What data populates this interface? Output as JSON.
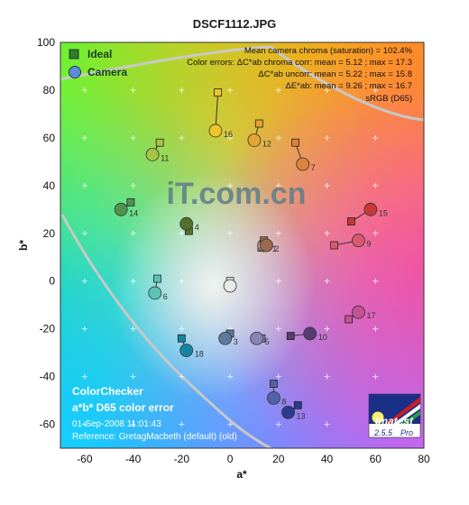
{
  "colors": {
    "background": "#ffffff",
    "plot_border": "#333333",
    "title": "#1a1a1a",
    "info_text": "#ffffff",
    "gamut_line": "#c8c8c8",
    "legend_ideal": "#2e7d32",
    "legend_camera": "#5b8dd9"
  },
  "chart_data": {
    "type": "scatter",
    "title": "DSCF1112.JPG",
    "xlabel": "a*",
    "ylabel": "b*",
    "xlim": [
      -70,
      80
    ],
    "ylim": [
      -70,
      100
    ],
    "xticks": [
      -60,
      -40,
      -20,
      0,
      20,
      40,
      60,
      80
    ],
    "yticks": [
      -60,
      -40,
      -20,
      0,
      20,
      40,
      60,
      80,
      100
    ],
    "grid": true,
    "background": "a*b* color field",
    "legend": {
      "position": "top-left",
      "entries": [
        {
          "name": "Ideal",
          "marker": "square"
        },
        {
          "name": "Camera",
          "marker": "circle"
        }
      ]
    },
    "stats": [
      "Mean camera chroma (saturation) = 102.4%",
      "Color errors:  ΔC*ab chroma corr:  mean = 5.12 ;  max = 17.3",
      "ΔC*ab uncorr:  mean = 5.22 ;  max = 15.8",
      "ΔE*ab:  mean = 9.26 ;  max = 16.7",
      "sRGB (D65)"
    ],
    "info": {
      "line1": "ColorChecker",
      "line2": "a*b* D65 color error",
      "date": "01-Sep-2008 11:01:43",
      "reference": "Reference: GretagMacbeth (default) (old)"
    },
    "watermark": "iT.com.cn",
    "logo": {
      "text": "Imatest",
      "version": "2.5.5",
      "edition": "Pro"
    },
    "patches": [
      {
        "id": "1",
        "ideal": [
          13,
          14
        ],
        "camera": [
          14,
          15
        ],
        "color": "#c1998a"
      },
      {
        "id": "2",
        "ideal": [
          14,
          17
        ],
        "camera": [
          15,
          15
        ],
        "color": "#9e6a52"
      },
      {
        "id": "3",
        "ideal": [
          0,
          -22
        ],
        "camera": [
          -2,
          -24
        ],
        "color": "#5f7aa0"
      },
      {
        "id": "4",
        "ideal": [
          -17,
          21
        ],
        "camera": [
          -18,
          24
        ],
        "color": "#55702e"
      },
      {
        "id": "5",
        "ideal": [
          13,
          -24
        ],
        "camera": [
          11,
          -24
        ],
        "color": "#8a84b6"
      },
      {
        "id": "6",
        "ideal": [
          -30,
          1
        ],
        "camera": [
          -31,
          -5
        ],
        "color": "#5bc3b4"
      },
      {
        "id": "7",
        "ideal": [
          27,
          58
        ],
        "camera": [
          30,
          49
        ],
        "color": "#e0823c"
      },
      {
        "id": "8",
        "ideal": [
          18,
          -43
        ],
        "camera": [
          18,
          -49
        ],
        "color": "#4e63ab"
      },
      {
        "id": "9",
        "ideal": [
          43,
          15
        ],
        "camera": [
          53,
          17
        ],
        "color": "#d9586a"
      },
      {
        "id": "10",
        "ideal": [
          25,
          -23
        ],
        "camera": [
          33,
          -22
        ],
        "color": "#5a3a73"
      },
      {
        "id": "11",
        "ideal": [
          -29,
          58
        ],
        "camera": [
          -32,
          53
        ],
        "color": "#a3c444"
      },
      {
        "id": "12",
        "ideal": [
          12,
          66
        ],
        "camera": [
          10,
          59
        ],
        "color": "#e5a531"
      },
      {
        "id": "13",
        "ideal": [
          28,
          -52
        ],
        "camera": [
          24,
          -55
        ],
        "color": "#2c3a8f"
      },
      {
        "id": "14",
        "ideal": [
          -41,
          33
        ],
        "camera": [
          -45,
          30
        ],
        "color": "#4d964c"
      },
      {
        "id": "15",
        "ideal": [
          50,
          25
        ],
        "camera": [
          58,
          30
        ],
        "color": "#c43a35"
      },
      {
        "id": "16",
        "ideal": [
          -5,
          79
        ],
        "camera": [
          -6,
          63
        ],
        "color": "#eec62a"
      },
      {
        "id": "17",
        "ideal": [
          49,
          -16
        ],
        "camera": [
          53,
          -13
        ],
        "color": "#c45294"
      },
      {
        "id": "18",
        "ideal": [
          -20,
          -24
        ],
        "camera": [
          -18,
          -29
        ],
        "color": "#1685a5"
      },
      {
        "id": "",
        "ideal": [
          0,
          0
        ],
        "camera": [
          0,
          -2
        ],
        "color": "#e8e8e8"
      }
    ]
  }
}
